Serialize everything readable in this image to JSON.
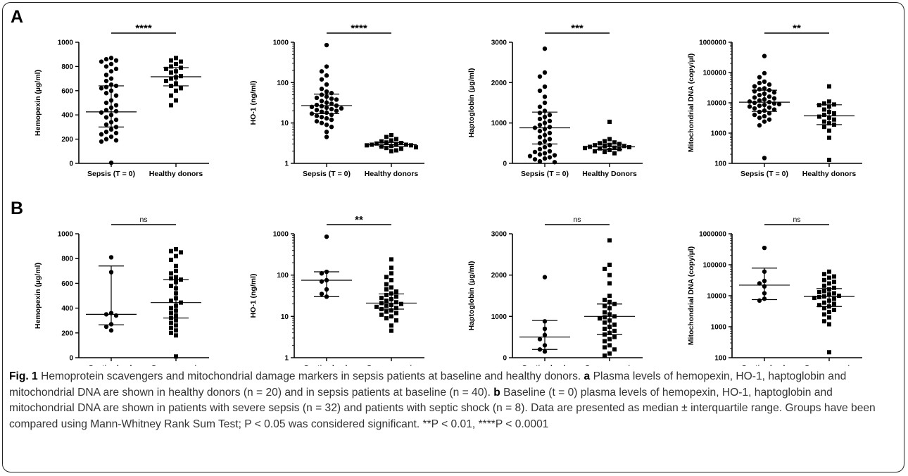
{
  "figure": {
    "panel_a_label": "A",
    "panel_b_label": "B"
  },
  "caption": {
    "fig_label": "Fig. 1",
    "title": "Hemoprotein scavengers and mitochondrial damage markers in sepsis patients at baseline and healthy donors.",
    "a_label": "a",
    "a_text": "Plasma levels of hemopexin, HO-1, haptoglobin and mitochondrial DNA are shown in healthy donors (n = 20) and in sepsis patients at baseline (n = 40).",
    "b_label": "b",
    "b_text": "Baseline (t = 0) plasma levels of hemopexin, HO-1, haptoglobin and mitochondrial DNA are shown in patients with severe sepsis (n = 32) and patients with septic shock (n = 8). Data are presented as median ± interquartile range. Groups have been compared using Mann-Whitney Rank Sum Test; P < 0.05 was considered significant. **P < 0.01, ****P < 0.0001"
  },
  "chart_data": [
    {
      "type": "scatter",
      "panel": "A",
      "ylabel": "Hemopexin (µg/ml)",
      "yscale": "linear",
      "ylim": [
        0,
        1000
      ],
      "yticks": [
        "0",
        "200",
        "400",
        "600",
        "800",
        "1000"
      ],
      "categories": [
        "Sepsis (T = 0)",
        "Healthy donors"
      ],
      "significance": "****",
      "series": [
        {
          "marker": "circle",
          "median": 425,
          "q1": 300,
          "q3": 640,
          "values": [
            870,
            860,
            850,
            840,
            820,
            800,
            780,
            760,
            730,
            700,
            680,
            650,
            640,
            630,
            620,
            600,
            580,
            560,
            520,
            500,
            480,
            460,
            440,
            430,
            420,
            400,
            380,
            360,
            340,
            320,
            300,
            280,
            260,
            250,
            240,
            220,
            200,
            190,
            180,
            5
          ]
        },
        {
          "marker": "square",
          "median": 715,
          "q1": 640,
          "q3": 790,
          "values": [
            870,
            850,
            840,
            820,
            800,
            790,
            780,
            760,
            750,
            720,
            710,
            700,
            680,
            660,
            640,
            620,
            600,
            560,
            520,
            480
          ]
        }
      ]
    },
    {
      "type": "scatter",
      "panel": "A",
      "ylabel": "HO-1 (ng/ml)",
      "yscale": "log",
      "ylim": [
        1,
        1000
      ],
      "yticks": [
        "1",
        "10",
        "100",
        "1000"
      ],
      "categories": [
        "Sepsis (T = 0)",
        "Healthy donors"
      ],
      "significance": "****",
      "series": [
        {
          "marker": "circle",
          "median": 27,
          "q1": 17,
          "q3": 52,
          "values": [
            850,
            250,
            190,
            150,
            120,
            90,
            70,
            60,
            55,
            50,
            45,
            42,
            40,
            38,
            35,
            32,
            30,
            28,
            27,
            26,
            25,
            24,
            23,
            22,
            21,
            20,
            19,
            18,
            17,
            16,
            15,
            14,
            13,
            12,
            11,
            10,
            9,
            8,
            6,
            4.5
          ]
        },
        {
          "marker": "square",
          "median": 2.9,
          "q1": 2.6,
          "q3": 3.3,
          "values": [
            5.0,
            4.5,
            4.0,
            3.7,
            3.5,
            3.3,
            3.2,
            3.1,
            3.0,
            2.9,
            2.9,
            2.8,
            2.8,
            2.7,
            2.6,
            2.5,
            2.4,
            2.3,
            2.1,
            2.0
          ]
        }
      ]
    },
    {
      "type": "scatter",
      "panel": "A",
      "ylabel": "Haptoglobin (µg/ml)",
      "yscale": "linear",
      "ylim": [
        0,
        3000
      ],
      "yticks": [
        "0",
        "1000",
        "2000",
        "3000"
      ],
      "categories": [
        "Sepsis (T = 0)",
        "Healthy Donors"
      ],
      "significance": "***",
      "series": [
        {
          "marker": "circle",
          "median": 880,
          "q1": 480,
          "q3": 1270,
          "values": [
            2840,
            2250,
            2150,
            1900,
            1800,
            1650,
            1500,
            1400,
            1300,
            1250,
            1200,
            1150,
            1100,
            1050,
            1000,
            950,
            900,
            880,
            850,
            800,
            750,
            700,
            650,
            600,
            550,
            500,
            450,
            400,
            350,
            300,
            280,
            250,
            220,
            200,
            180,
            150,
            120,
            100,
            50,
            30
          ]
        },
        {
          "marker": "square",
          "median": 410,
          "q1": 340,
          "q3": 480,
          "values": [
            1030,
            600,
            550,
            520,
            500,
            480,
            460,
            450,
            430,
            420,
            410,
            400,
            390,
            380,
            370,
            350,
            330,
            300,
            280,
            250
          ]
        }
      ]
    },
    {
      "type": "scatter",
      "panel": "A",
      "ylabel": "Mitochondrial DNA (copy/µl)",
      "yscale": "log",
      "ylim": [
        100,
        1000000
      ],
      "yticks": [
        "100",
        "1000",
        "10000",
        "100000",
        "1000000"
      ],
      "categories": [
        "Sepsis (T = 0)",
        "Healthy donors"
      ],
      "significance": "**",
      "series": [
        {
          "marker": "circle",
          "median": 10500,
          "q1": 5200,
          "q3": 26000,
          "values": [
            350000,
            95000,
            70000,
            50000,
            45000,
            40000,
            35000,
            30000,
            28000,
            26000,
            24000,
            22000,
            20000,
            18000,
            16000,
            15000,
            14000,
            13000,
            12000,
            11000,
            10500,
            10000,
            9500,
            9000,
            8500,
            8000,
            7500,
            7000,
            6500,
            6000,
            5500,
            5000,
            4500,
            4000,
            3600,
            3200,
            2800,
            2400,
            1800,
            150
          ]
        },
        {
          "marker": "square",
          "median": 3700,
          "q1": 1900,
          "q3": 8600,
          "values": [
            35000,
            11000,
            9500,
            8800,
            8400,
            7500,
            6000,
            5000,
            4500,
            4000,
            3500,
            3200,
            2800,
            2400,
            2100,
            1900,
            1600,
            1200,
            700,
            130
          ]
        }
      ]
    },
    {
      "type": "scatter",
      "panel": "B",
      "ylabel": "Hemopexin (µg/ml)",
      "yscale": "linear",
      "ylim": [
        0,
        1000
      ],
      "yticks": [
        "0",
        "200",
        "400",
        "600",
        "800",
        "1000"
      ],
      "categories": [
        "Septic shock",
        "Severe sepsis"
      ],
      "significance": "ns",
      "series": [
        {
          "marker": "circle",
          "median": 350,
          "q1": 265,
          "q3": 740,
          "values": [
            810,
            690,
            360,
            350,
            340,
            270,
            250,
            220
          ]
        },
        {
          "marker": "square",
          "median": 445,
          "q1": 320,
          "q3": 630,
          "values": [
            875,
            860,
            850,
            820,
            790,
            740,
            700,
            680,
            650,
            640,
            630,
            610,
            580,
            560,
            520,
            480,
            460,
            445,
            420,
            400,
            380,
            360,
            340,
            320,
            300,
            280,
            260,
            240,
            220,
            200,
            180,
            10
          ]
        }
      ]
    },
    {
      "type": "scatter",
      "panel": "B",
      "ylabel": "HO-1 (ng/ml)",
      "yscale": "log",
      "ylim": [
        1,
        1000
      ],
      "yticks": [
        "1",
        "10",
        "100",
        "1000"
      ],
      "categories": [
        "Septic shock",
        "Severe sepsis"
      ],
      "significance": "**",
      "series": [
        {
          "marker": "circle",
          "median": 75,
          "q1": 30,
          "q3": 120,
          "values": [
            850,
            120,
            110,
            75,
            70,
            45,
            35,
            30
          ]
        },
        {
          "marker": "square",
          "median": 21,
          "q1": 15,
          "q3": 35,
          "values": [
            240,
            150,
            110,
            90,
            75,
            60,
            50,
            45,
            40,
            36,
            33,
            30,
            28,
            26,
            24,
            22,
            21,
            20,
            19,
            18,
            17,
            16,
            15,
            14,
            13,
            12,
            11,
            10,
            9,
            8,
            6,
            4.5
          ]
        }
      ]
    },
    {
      "type": "scatter",
      "panel": "B",
      "ylabel": "Haptoglobin (µg/ml)",
      "yscale": "linear",
      "ylim": [
        0,
        3000
      ],
      "yticks": [
        "0",
        "1000",
        "2000",
        "3000"
      ],
      "categories": [
        "Septic shock",
        "Severe sepsis"
      ],
      "significance": "ns",
      "series": [
        {
          "marker": "circle",
          "median": 500,
          "q1": 200,
          "q3": 900,
          "values": [
            1950,
            880,
            700,
            550,
            450,
            300,
            200,
            150
          ]
        },
        {
          "marker": "square",
          "median": 1000,
          "q1": 560,
          "q3": 1300,
          "values": [
            2840,
            2250,
            2150,
            2000,
            1800,
            1500,
            1400,
            1350,
            1300,
            1250,
            1200,
            1100,
            1050,
            1000,
            980,
            950,
            900,
            850,
            800,
            750,
            700,
            650,
            600,
            560,
            500,
            450,
            400,
            300,
            250,
            200,
            100,
            50
          ]
        }
      ]
    },
    {
      "type": "scatter",
      "panel": "B",
      "ylabel": "Mitochondrial DNA (copy/µl)",
      "yscale": "log",
      "ylim": [
        100,
        1000000
      ],
      "yticks": [
        "100",
        "1000",
        "10000",
        "100000",
        "1000000"
      ],
      "categories": [
        "Septic shock",
        "Severe sepsis"
      ],
      "significance": "ns",
      "series": [
        {
          "marker": "circle",
          "median": 22000,
          "q1": 7500,
          "q3": 78000,
          "values": [
            350000,
            60000,
            30000,
            25000,
            20000,
            12000,
            8000,
            7000
          ]
        },
        {
          "marker": "square",
          "median": 9500,
          "q1": 4500,
          "q3": 17000,
          "values": [
            60000,
            50000,
            42000,
            38000,
            32000,
            28000,
            25000,
            21000,
            18000,
            16000,
            14000,
            13000,
            12000,
            11000,
            10000,
            9500,
            9000,
            8500,
            8000,
            7000,
            6000,
            5500,
            5000,
            4500,
            4000,
            3500,
            3000,
            2500,
            2000,
            1500,
            1200,
            150
          ]
        }
      ]
    }
  ]
}
